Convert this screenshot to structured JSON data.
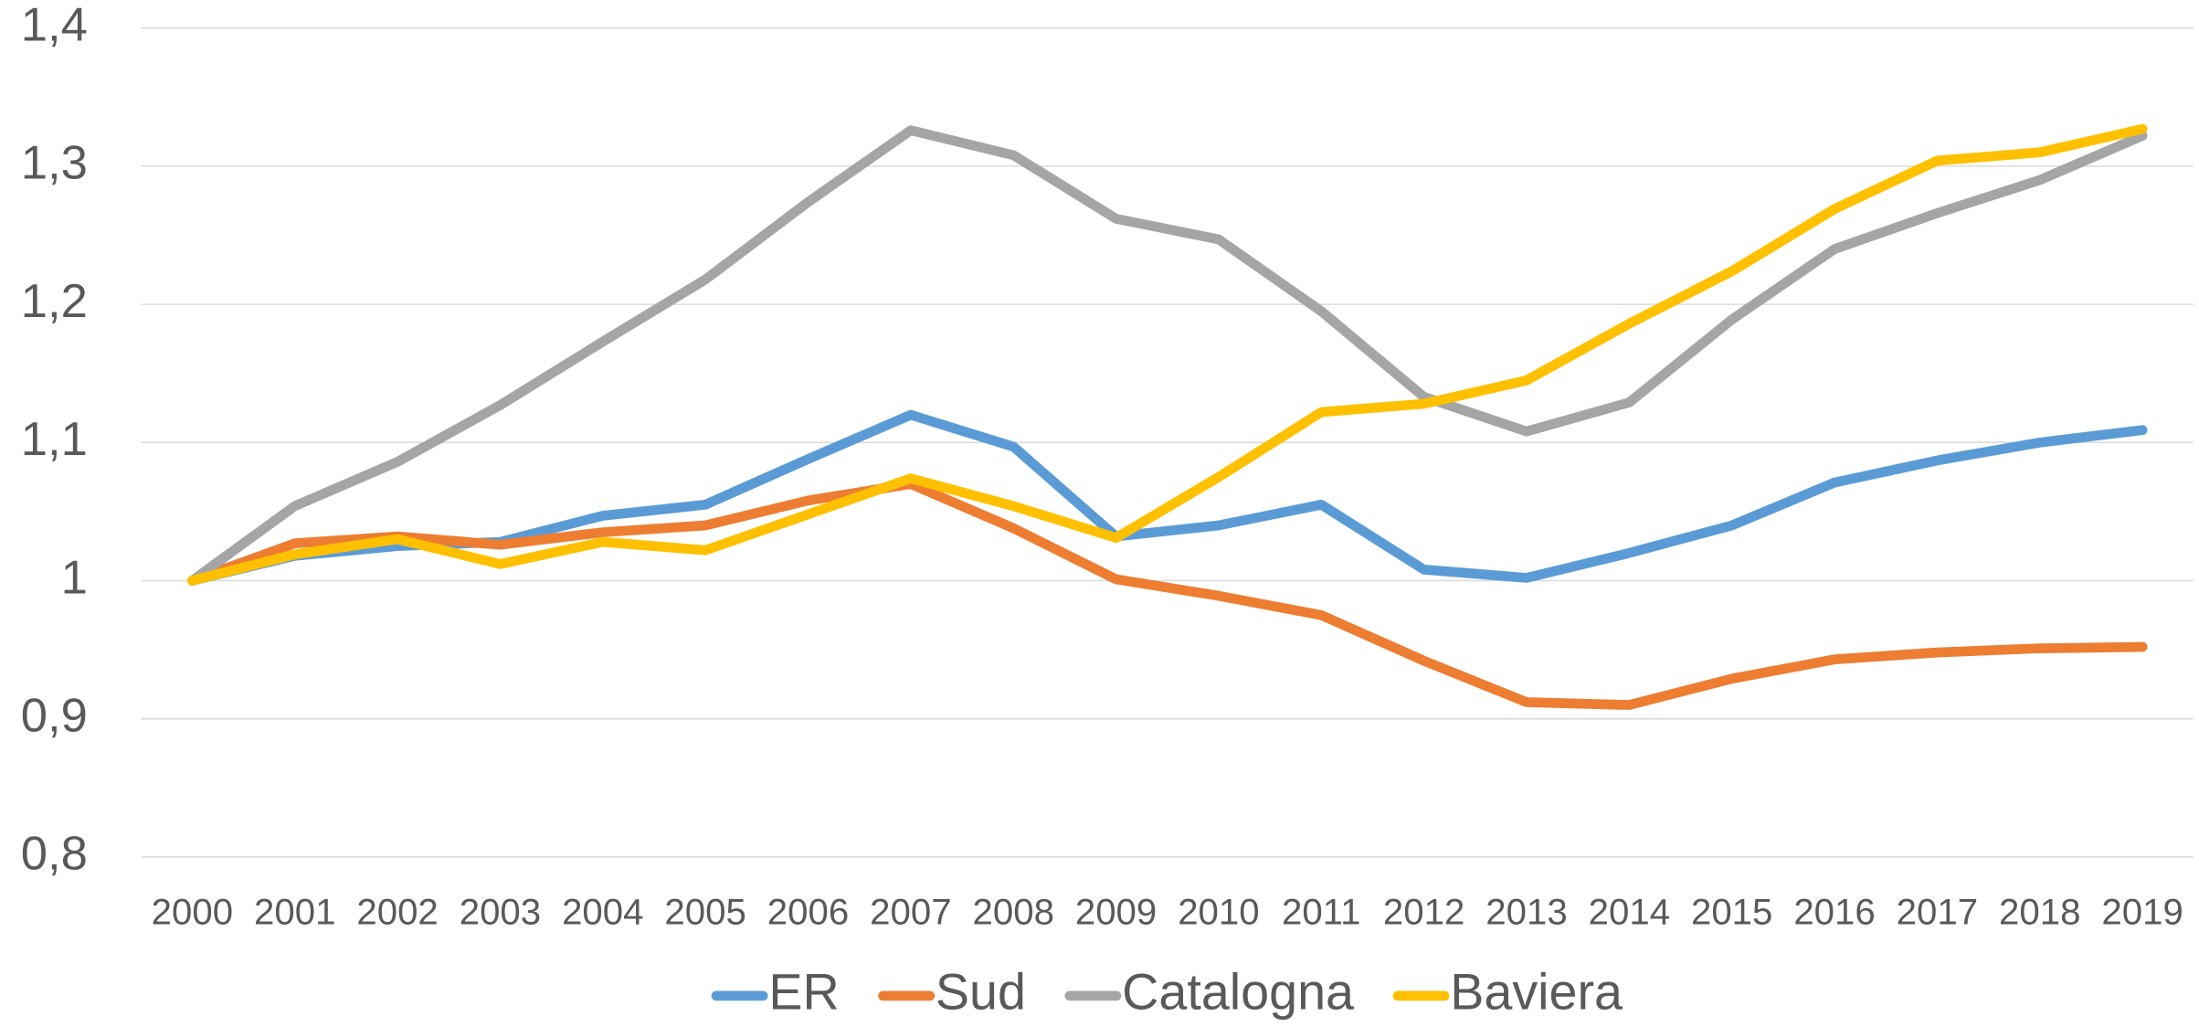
{
  "chart_data": {
    "type": "line",
    "categories": [
      "2000",
      "2001",
      "2002",
      "2003",
      "2004",
      "2005",
      "2006",
      "2007",
      "2008",
      "2009",
      "2010",
      "2011",
      "2012",
      "2013",
      "2014",
      "2015",
      "2016",
      "2017",
      "2018",
      "2019"
    ],
    "series": [
      {
        "name": "ER",
        "color": "#5b9bd5",
        "values": [
          1.0,
          1.018,
          1.025,
          1.028,
          1.047,
          1.055,
          1.088,
          1.12,
          1.097,
          1.032,
          1.04,
          1.055,
          1.008,
          1.002,
          1.02,
          1.04,
          1.071,
          1.087,
          1.1,
          1.109
        ]
      },
      {
        "name": "Sud",
        "color": "#ed7d31",
        "values": [
          1.0,
          1.027,
          1.032,
          1.026,
          1.035,
          1.04,
          1.058,
          1.07,
          1.038,
          1.001,
          0.989,
          0.975,
          0.942,
          0.912,
          0.91,
          0.929,
          0.943,
          0.948,
          0.951,
          0.952
        ]
      },
      {
        "name": "Catalogna",
        "color": "#a5a5a5",
        "values": [
          1.0,
          1.054,
          1.086,
          1.127,
          1.173,
          1.218,
          1.274,
          1.326,
          1.308,
          1.262,
          1.247,
          1.195,
          1.133,
          1.108,
          1.129,
          1.189,
          1.24,
          1.266,
          1.29,
          1.322
        ]
      },
      {
        "name": "Baviera",
        "color": "#ffc000",
        "values": [
          1.0,
          1.019,
          1.03,
          1.012,
          1.028,
          1.022,
          1.048,
          1.074,
          1.054,
          1.031,
          1.075,
          1.122,
          1.128,
          1.145,
          1.186,
          1.224,
          1.269,
          1.304,
          1.31,
          1.327
        ]
      }
    ],
    "ylim": [
      0.8,
      1.4
    ],
    "yticks": [
      {
        "value": 0.8,
        "label": "0,8"
      },
      {
        "value": 0.9,
        "label": "0,9"
      },
      1,
      {
        "value": 1.1,
        "label": "1,1"
      },
      {
        "value": 1.2,
        "label": "1,2"
      },
      {
        "value": 1.3,
        "label": "1,3"
      },
      {
        "value": 1.4,
        "label": "1,4"
      }
    ],
    "grid": true,
    "legend": "bottom"
  }
}
